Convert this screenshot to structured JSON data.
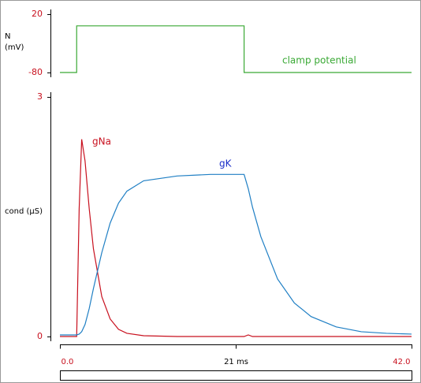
{
  "chart_data": [
    {
      "type": "line",
      "ylabel_lines": [
        "N",
        "(mV)"
      ],
      "xlim": [
        0,
        42
      ],
      "ylim": [
        -80,
        20
      ],
      "yticks": [
        20,
        -80
      ],
      "x": [
        0,
        2,
        2,
        22,
        22,
        42
      ],
      "series": [
        {
          "name": "clamp potential",
          "color": "#3aa935",
          "values": [
            -80,
            -80,
            0,
            0,
            -80,
            -80
          ]
        }
      ]
    },
    {
      "type": "line",
      "ylabel": "cond (µS)",
      "xlim": [
        0,
        42
      ],
      "ylim": [
        0,
        3
      ],
      "yticks": [
        3,
        0
      ],
      "xticks": [
        {
          "value": 0,
          "label": "0.0"
        },
        {
          "value": 21,
          "label": "21 ms"
        },
        {
          "value": 42,
          "label": "42.0"
        }
      ],
      "x": [
        0,
        2,
        2.3,
        2.6,
        3,
        3.5,
        4,
        5,
        6,
        7,
        8,
        10,
        14,
        18,
        22,
        22.5,
        23,
        24,
        26,
        28,
        30,
        33,
        36,
        39,
        42
      ],
      "series": [
        {
          "name": "gNa",
          "color": "#c8101e",
          "values": [
            0,
            0,
            1.6,
            2.47,
            2.2,
            1.6,
            1.1,
            0.5,
            0.22,
            0.09,
            0.04,
            0.01,
            0,
            0,
            0,
            0.02,
            0,
            0,
            0,
            0,
            0,
            0,
            0,
            0,
            0
          ]
        },
        {
          "name": "gK",
          "color": "#1f7fc4",
          "values": [
            0.02,
            0.02,
            0.03,
            0.06,
            0.15,
            0.35,
            0.6,
            1.05,
            1.42,
            1.67,
            1.82,
            1.95,
            2.01,
            2.03,
            2.03,
            1.85,
            1.62,
            1.25,
            0.72,
            0.42,
            0.25,
            0.12,
            0.06,
            0.04,
            0.03
          ]
        }
      ]
    }
  ]
}
